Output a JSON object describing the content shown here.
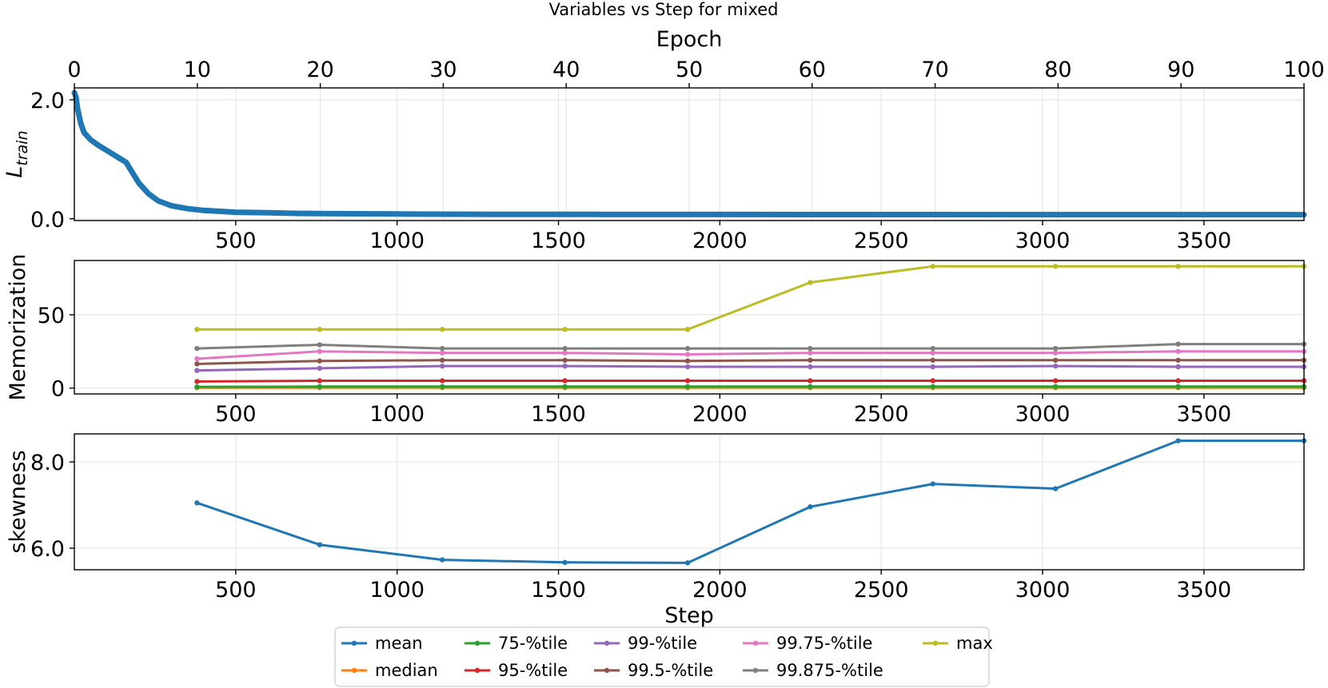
{
  "figure": {
    "title": "Variables vs Step for mixed",
    "top_axis_label": "Epoch",
    "bottom_axis_label": "Step"
  },
  "chart_data": [
    {
      "type": "line",
      "panel": "loss",
      "ylabel_main": "L",
      "ylabel_sub": "train",
      "xlim": [
        0,
        3810
      ],
      "ylim": [
        -0.03,
        2.2
      ],
      "x_ticks": [
        500,
        1000,
        1500,
        2000,
        2500,
        3000,
        3500
      ],
      "y_ticks": [
        0.0,
        2.0
      ],
      "y_tick_labels": [
        "0.0",
        "2.0"
      ],
      "top_axis": {
        "label": "Epoch",
        "xlim": [
          0,
          100
        ],
        "ticks": [
          0,
          10,
          20,
          30,
          40,
          50,
          60,
          70,
          80,
          90,
          100
        ]
      },
      "series": [
        {
          "legend_ref": "mean",
          "color": "#1f77b4",
          "x": [
            0,
            5,
            10,
            20,
            30,
            50,
            70,
            100,
            130,
            160,
            200,
            230,
            260,
            300,
            350,
            400,
            500,
            600,
            700,
            800,
            1000,
            1300,
            1600,
            2000,
            2500,
            3000,
            3500,
            3810
          ],
          "y": [
            2.12,
            2.05,
            1.85,
            1.6,
            1.45,
            1.33,
            1.25,
            1.15,
            1.05,
            0.95,
            0.6,
            0.42,
            0.3,
            0.22,
            0.17,
            0.14,
            0.11,
            0.1,
            0.09,
            0.085,
            0.08,
            0.075,
            0.073,
            0.072,
            0.071,
            0.07,
            0.07,
            0.07
          ]
        }
      ]
    },
    {
      "type": "line",
      "panel": "memorization",
      "ylabel": "Memorization",
      "xlim": [
        0,
        3810
      ],
      "ylim": [
        -4,
        87
      ],
      "x_ticks": [
        500,
        1000,
        1500,
        2000,
        2500,
        3000,
        3500
      ],
      "y_ticks": [
        0,
        50
      ],
      "x": [
        380,
        760,
        1140,
        1520,
        1900,
        2280,
        2660,
        3040,
        3420,
        3810
      ],
      "series": [
        {
          "name": "mean",
          "color": "#1f77b4",
          "values": [
            0.5,
            0.6,
            0.6,
            0.6,
            0.6,
            0.6,
            0.6,
            0.6,
            0.6,
            0.6
          ]
        },
        {
          "name": "median",
          "color": "#ff7f0e",
          "values": [
            0.2,
            0.2,
            0.2,
            0.2,
            0.2,
            0.2,
            0.2,
            0.2,
            0.2,
            0.2
          ]
        },
        {
          "name": "75-%tile",
          "color": "#2ca02c",
          "values": [
            0.8,
            1,
            1,
            1,
            1,
            1,
            1,
            1,
            1,
            1
          ]
        },
        {
          "name": "95-%tile",
          "color": "#d62728",
          "values": [
            4.5,
            5,
            5,
            5,
            5,
            5,
            5,
            5,
            5,
            5
          ]
        },
        {
          "name": "99-%tile",
          "color": "#9467bd",
          "values": [
            12,
            13.5,
            15,
            15,
            14.5,
            14.5,
            14.5,
            15,
            14.5,
            14.5
          ]
        },
        {
          "name": "99.5-%tile",
          "color": "#8c564b",
          "values": [
            16.5,
            18.5,
            19,
            19,
            18.5,
            19,
            19,
            19,
            19,
            19
          ]
        },
        {
          "name": "99.75-%tile",
          "color": "#e377c2",
          "values": [
            20,
            25,
            24,
            24,
            23,
            24,
            24,
            24,
            25,
            25
          ]
        },
        {
          "name": "99.875-%tile",
          "color": "#7f7f7f",
          "values": [
            27,
            29.5,
            27,
            27,
            27,
            27,
            27,
            27,
            30,
            30
          ]
        },
        {
          "name": "max",
          "color": "#bcbd22",
          "values": [
            40,
            40,
            40,
            40,
            40,
            72,
            83,
            83,
            83,
            83
          ]
        }
      ]
    },
    {
      "type": "line",
      "panel": "skewness",
      "ylabel": "skewness",
      "xlim": [
        0,
        3810
      ],
      "ylim": [
        5.5,
        8.65
      ],
      "x_ticks": [
        500,
        1000,
        1500,
        2000,
        2500,
        3000,
        3500
      ],
      "y_ticks": [
        6.0,
        8.0
      ],
      "y_tick_labels": [
        "6.0",
        "8.0"
      ],
      "x": [
        380,
        760,
        1140,
        1520,
        1900,
        2280,
        2660,
        3040,
        3420,
        3810
      ],
      "series": [
        {
          "legend_ref": "mean",
          "color": "#1f77b4",
          "values": [
            7.05,
            6.08,
            5.73,
            5.67,
            5.66,
            6.96,
            7.49,
            7.38,
            8.49,
            8.49
          ]
        }
      ]
    }
  ],
  "legend": {
    "placement": "bottom-center",
    "columns": 5,
    "items": [
      {
        "label": "mean",
        "color": "#1f77b4"
      },
      {
        "label": "median",
        "color": "#ff7f0e"
      },
      {
        "label": "75-%tile",
        "color": "#2ca02c"
      },
      {
        "label": "95-%tile",
        "color": "#d62728"
      },
      {
        "label": "99-%tile",
        "color": "#9467bd"
      },
      {
        "label": "99.5-%tile",
        "color": "#8c564b"
      },
      {
        "label": "99.75-%tile",
        "color": "#e377c2"
      },
      {
        "label": "99.875-%tile",
        "color": "#7f7f7f"
      },
      {
        "label": "max",
        "color": "#bcbd22"
      }
    ]
  }
}
